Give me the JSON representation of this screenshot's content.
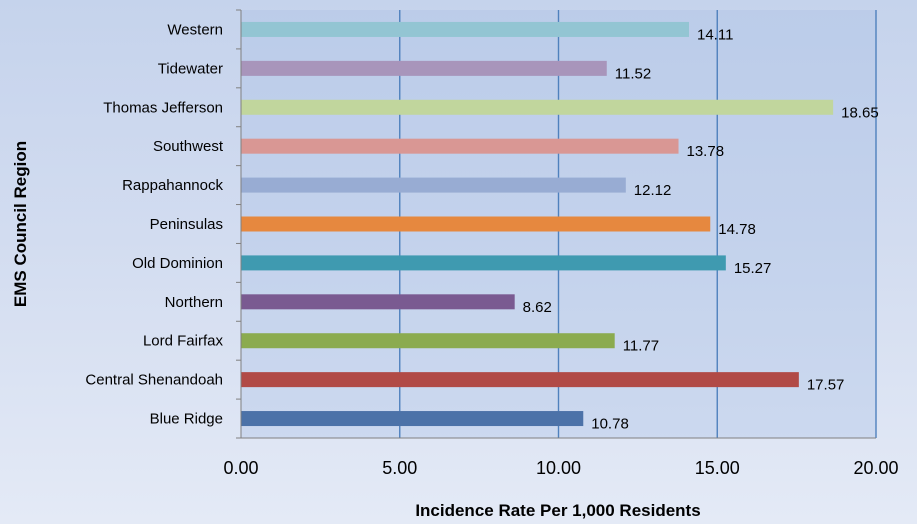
{
  "chart_data": {
    "type": "bar",
    "orientation": "horizontal",
    "xlabel": "Incidence Rate Per 1,000 Residents",
    "ylabel": "EMS Council Region",
    "xlim": [
      0,
      20
    ],
    "x_ticks": [
      "0.00",
      "5.00",
      "10.00",
      "15.00",
      "20.00"
    ],
    "grid": "vertical",
    "categories": [
      "Western",
      "Tidewater",
      "Thomas Jefferson",
      "Southwest",
      "Rappahannock",
      "Peninsulas",
      "Old Dominion",
      "Northern",
      "Lord Fairfax",
      "Central Shenandoah",
      "Blue Ridge"
    ],
    "values": [
      14.11,
      11.52,
      18.65,
      13.78,
      12.12,
      14.78,
      15.27,
      8.62,
      11.77,
      17.57,
      10.78
    ],
    "value_labels": [
      "14.11",
      "11.52",
      "18.65",
      "13.78",
      "12.12",
      "14.78",
      "15.27",
      "8.62",
      "11.77",
      "17.57",
      "10.78"
    ],
    "colors": [
      "#93c5d3",
      "#a895bb",
      "#c1d69d",
      "#d99794",
      "#98acd3",
      "#e6883f",
      "#3f9ab0",
      "#7a5a91",
      "#8bab4f",
      "#b14a46",
      "#4c72a8"
    ]
  }
}
